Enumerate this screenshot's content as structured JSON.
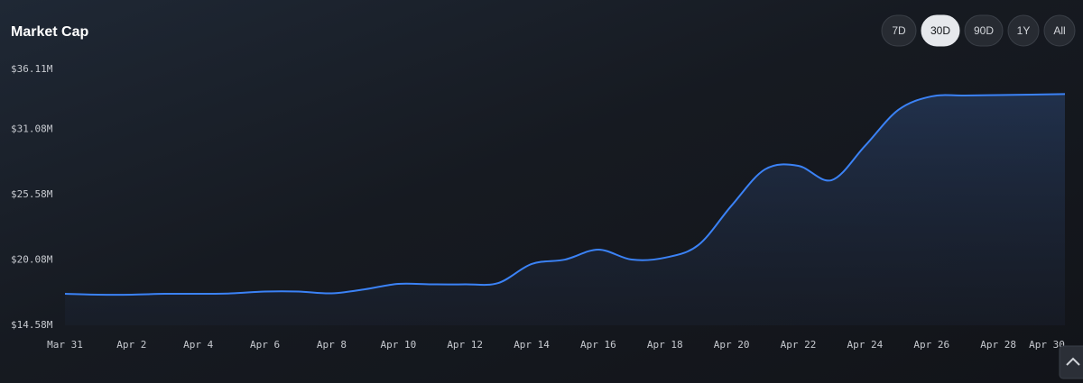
{
  "chart_data": {
    "type": "line",
    "title": "Market Cap",
    "categories": [
      "Mar 31",
      null,
      "Apr 2",
      null,
      "Apr 4",
      null,
      "Apr 6",
      null,
      "Apr 8",
      null,
      "Apr 10",
      null,
      "Apr 12",
      null,
      "Apr 14",
      null,
      "Apr 16",
      null,
      "Apr 18",
      null,
      "Apr 20",
      null,
      "Apr 22",
      null,
      "Apr 24",
      null,
      "Apr 26",
      null,
      "Apr 28",
      null,
      "Apr 30"
    ],
    "series": [
      {
        "color": "#3b82f6",
        "values": [
          17.23,
          17.16,
          17.16,
          17.23,
          17.23,
          17.27,
          17.42,
          17.42,
          17.27,
          17.61,
          18.07,
          18.03,
          18.03,
          18.14,
          19.74,
          20.11,
          20.95,
          20.11,
          20.27,
          21.33,
          24.66,
          27.7,
          28.0,
          26.79,
          29.67,
          32.7,
          33.84,
          33.91,
          33.95,
          33.99,
          34.03
        ]
      }
    ],
    "ylim": [
      14.58,
      36.11
    ],
    "yticks": [
      {
        "value": 14.58,
        "label": "$14.58M"
      },
      {
        "value": 20.08,
        "label": "$20.08M"
      },
      {
        "value": 25.58,
        "label": "$25.58M"
      },
      {
        "value": 31.08,
        "label": "$31.08M"
      },
      {
        "value": 36.11,
        "label": "$36.11M"
      }
    ],
    "grid": false
  },
  "range_buttons": [
    {
      "label": "7D",
      "selected": false
    },
    {
      "label": "30D",
      "selected": true
    },
    {
      "label": "90D",
      "selected": false
    },
    {
      "label": "1Y",
      "selected": false
    },
    {
      "label": "All",
      "selected": false
    }
  ]
}
